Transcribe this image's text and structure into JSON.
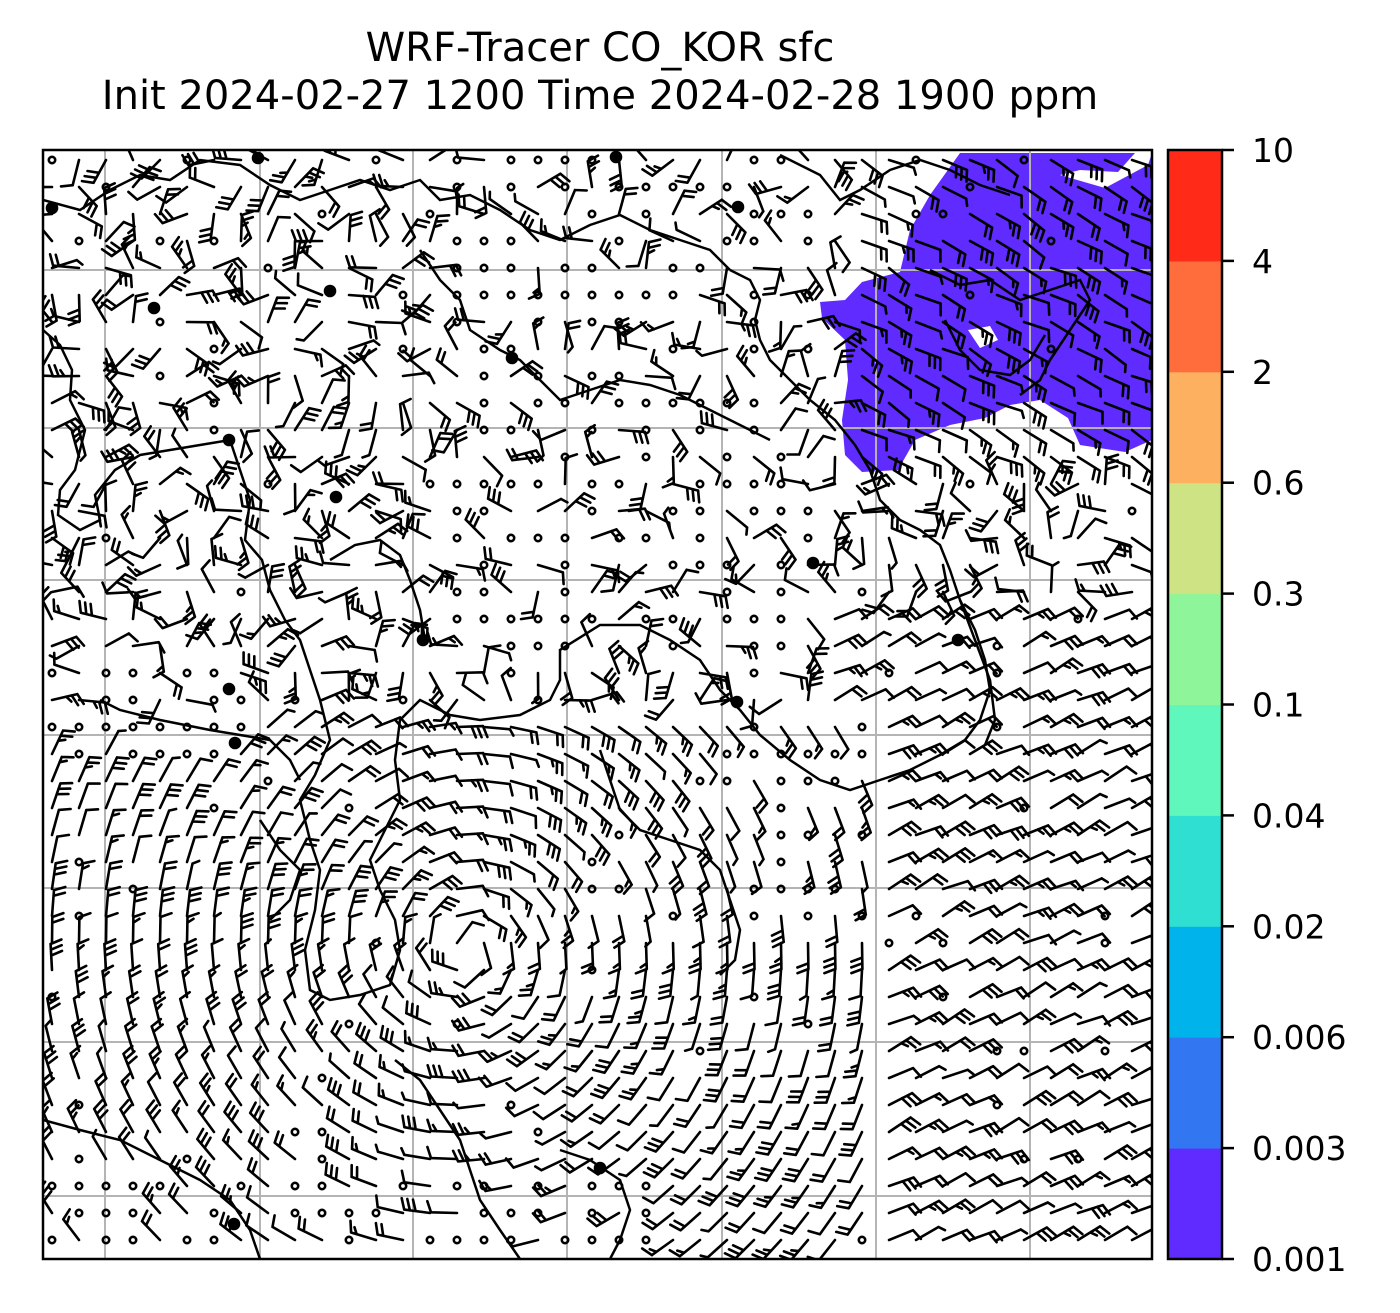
{
  "title": {
    "line1": "WRF-Tracer CO_KOR sfc",
    "line2": "Init 2024-02-27 1200 Time 2024-02-28 1900 ppm"
  },
  "colorbar": {
    "levels": [
      "0.001",
      "0.003",
      "0.006",
      "0.02",
      "0.04",
      "0.1",
      "0.3",
      "0.6",
      "2",
      "4",
      "10"
    ],
    "colors": [
      "#5f2bff",
      "#3376f1",
      "#00b3ea",
      "#2fdfd2",
      "#5ff7bc",
      "#8ff59b",
      "#cde384",
      "#feb061",
      "#fe6d3b",
      "#ff2a18"
    ]
  },
  "map": {
    "tracer_color": "#5f2bff",
    "grid_color": "#b4b4b4"
  }
}
